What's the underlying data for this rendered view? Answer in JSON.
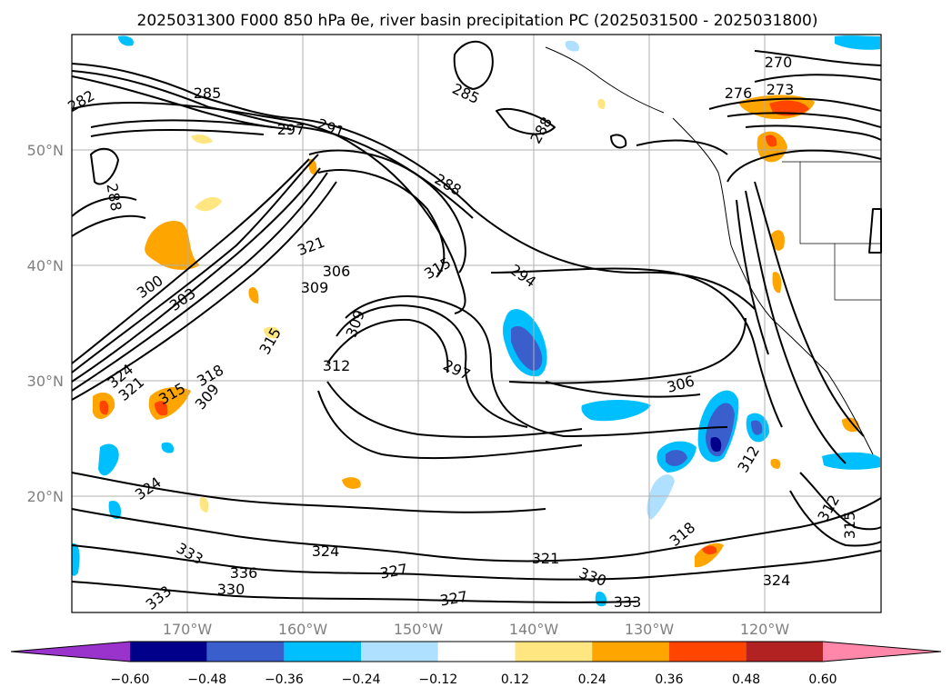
{
  "title": "2025031300 F000 850 hPa θe, river basin precipitation PC (2025031500 - 2025031800)",
  "lat_labels": [
    "50°N",
    "40°N",
    "30°N",
    "20°N"
  ],
  "lon_labels": [
    "170°W",
    "160°W",
    "150°W",
    "140°W",
    "130°W",
    "120°W"
  ],
  "colorbar": {
    "tick_labels": [
      "−0.60",
      "−0.48",
      "−0.36",
      "−0.24",
      "−0.12",
      "0.12",
      "0.24",
      "0.36",
      "0.48",
      "0.60"
    ],
    "colors": [
      "#9933cc",
      "#00008b",
      "#3a5fcd",
      "#00bfff",
      "#b0e0ff",
      "#ffffff",
      "#ffe680",
      "#ffa500",
      "#ff4500",
      "#b22222",
      "#ff88aa"
    ]
  },
  "contour_labels": [
    {
      "text": "282"
    },
    {
      "text": "285"
    },
    {
      "text": "285"
    },
    {
      "text": "288"
    },
    {
      "text": "288"
    },
    {
      "text": "288"
    },
    {
      "text": "270"
    },
    {
      "text": "276"
    },
    {
      "text": "273"
    },
    {
      "text": "297"
    },
    {
      "text": "291"
    },
    {
      "text": "294"
    },
    {
      "text": "300"
    },
    {
      "text": "303"
    },
    {
      "text": "306"
    },
    {
      "text": "309"
    },
    {
      "text": "321"
    },
    {
      "text": "315"
    },
    {
      "text": "309"
    },
    {
      "text": "312"
    },
    {
      "text": "297"
    },
    {
      "text": "306"
    },
    {
      "text": "324"
    },
    {
      "text": "321"
    },
    {
      "text": "315"
    },
    {
      "text": "318"
    },
    {
      "text": "309"
    },
    {
      "text": "315"
    },
    {
      "text": "324"
    },
    {
      "text": "312"
    },
    {
      "text": "318"
    },
    {
      "text": "321"
    },
    {
      "text": "324"
    },
    {
      "text": "327"
    },
    {
      "text": "330"
    },
    {
      "text": "333"
    },
    {
      "text": "336"
    },
    {
      "text": "330"
    },
    {
      "text": "333"
    },
    {
      "text": "324"
    },
    {
      "text": "312"
    },
    {
      "text": "315"
    },
    {
      "text": "333"
    },
    {
      "text": "327"
    }
  ]
}
